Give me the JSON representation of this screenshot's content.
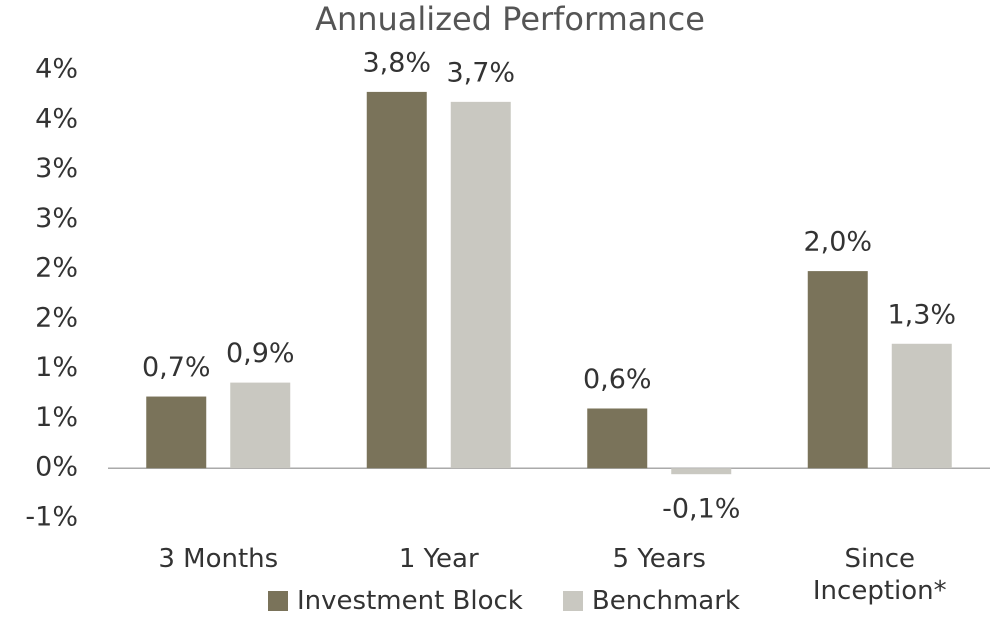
{
  "chart_data": {
    "type": "bar",
    "title": "Annualized Performance",
    "categories": [
      "3 Months",
      "1 Year",
      "5 Years",
      "Since Inception*"
    ],
    "series": [
      {
        "name": "Investment Block",
        "color": "#7a735a",
        "values": [
          0.72,
          3.78,
          0.6,
          1.98
        ],
        "value_labels": [
          "0,7%",
          "3,8%",
          "0,6%",
          "2,0%"
        ]
      },
      {
        "name": "Benchmark",
        "color": "#c9c8c1",
        "values": [
          0.86,
          3.68,
          -0.06,
          1.25
        ],
        "value_labels": [
          "0,9%",
          "3,7%",
          "-0,1%",
          "1,3%"
        ]
      }
    ],
    "ylim": [
      -0.5,
      4.0
    ],
    "yticks": [
      {
        "value": -0.5,
        "label": "-1%"
      },
      {
        "value": 0,
        "label": "0%"
      },
      {
        "value": 0.5,
        "label": "1%"
      },
      {
        "value": 1,
        "label": "1%"
      },
      {
        "value": 1.5,
        "label": "2%"
      },
      {
        "value": 2,
        "label": "2%"
      },
      {
        "value": 2.5,
        "label": "3%"
      },
      {
        "value": 3,
        "label": "3%"
      },
      {
        "value": 3.5,
        "label": "4%"
      },
      {
        "value": 4,
        "label": "4%"
      }
    ],
    "grid": false,
    "legend": "bottom"
  }
}
